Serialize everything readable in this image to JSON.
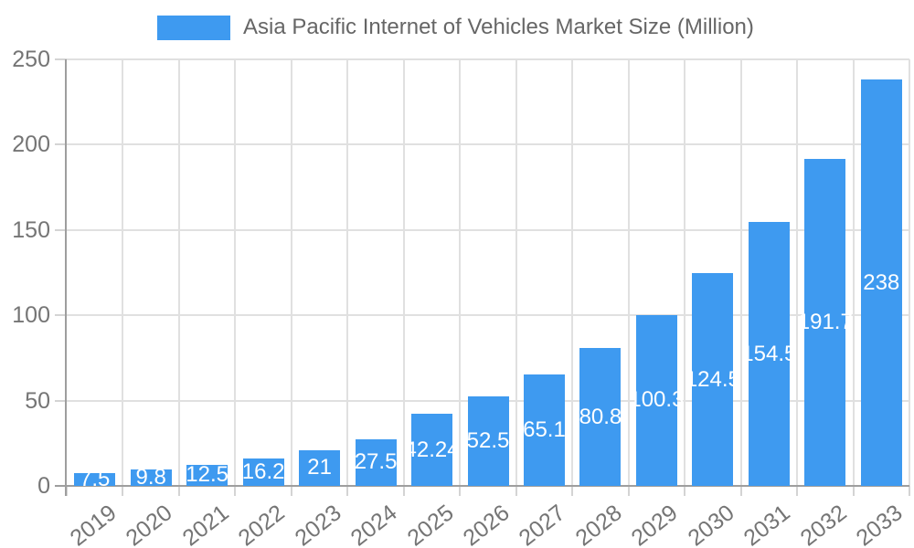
{
  "chart_data": {
    "type": "bar",
    "title": "Asia Pacific Internet of Vehicles Market Size (Million)",
    "categories": [
      "2019",
      "2020",
      "2021",
      "2022",
      "2023",
      "2024",
      "2025",
      "2026",
      "2027",
      "2028",
      "2029",
      "2030",
      "2031",
      "2032",
      "2033"
    ],
    "values": [
      7.5,
      9.8,
      12.5,
      16.2,
      21,
      27.5,
      42.24,
      52.5,
      65.1,
      80.8,
      100.3,
      124.5,
      154.5,
      191.7,
      238
    ],
    "value_labels": [
      "7.5",
      "9.8",
      "12.5",
      "16.2",
      "21",
      "27.5",
      "42.24",
      "52.5",
      "65.1",
      "80.8",
      "100.3",
      "124.5",
      "154.5",
      "191.7",
      "238"
    ],
    "xlabel": "",
    "ylabel": "",
    "ylim": [
      0,
      250
    ],
    "yticks": [
      0,
      50,
      100,
      150,
      200,
      250
    ],
    "grid": true,
    "legend_position": "top",
    "legend_entries": [
      "Asia Pacific Internet of Vehicles Market Size (Million)"
    ],
    "bar_color": "#3E9AF0",
    "bar_label_color": "#FFFFFF",
    "grid_color": "#E0E0E0",
    "tick_color": "#D4D4D4",
    "axis_color": "#9E9E9E",
    "tick_label_color": "#757575",
    "legend_text_color": "#666666"
  }
}
